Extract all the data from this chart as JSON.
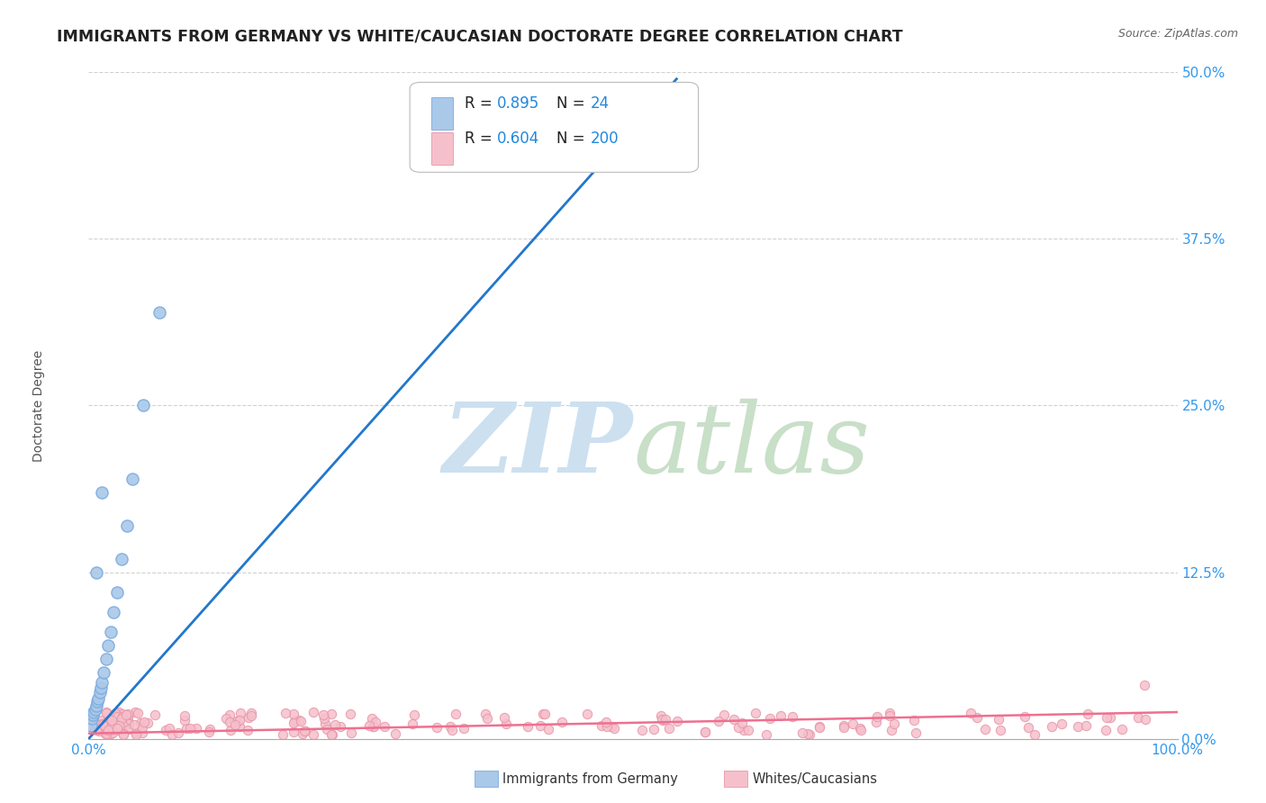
{
  "title": "IMMIGRANTS FROM GERMANY VS WHITE/CAUCASIAN DOCTORATE DEGREE CORRELATION CHART",
  "source_text": "Source: ZipAtlas.com",
  "ylabel": "Doctorate Degree",
  "xlim": [
    0,
    1.0
  ],
  "ylim": [
    0,
    0.5
  ],
  "y_tick_values": [
    0.0,
    0.125,
    0.25,
    0.375,
    0.5
  ],
  "background_color": "#ffffff",
  "plot_bg_color": "#ffffff",
  "grid_color": "#cccccc",
  "blue_fill_color": "#aac8e8",
  "blue_edge_color": "#7aace0",
  "pink_fill_color": "#f5c0cc",
  "pink_edge_color": "#e898aa",
  "blue_line_color": "#2277cc",
  "pink_line_color": "#ee7090",
  "legend_R1": "0.895",
  "legend_N1": "24",
  "legend_R2": "0.604",
  "legend_N2": "200",
  "title_fontsize": 12.5,
  "blue_trend_x": [
    0.0,
    0.54
  ],
  "blue_trend_y": [
    0.0,
    0.495
  ],
  "pink_trend_x": [
    0.0,
    1.0
  ],
  "pink_trend_y": [
    0.004,
    0.02
  ]
}
